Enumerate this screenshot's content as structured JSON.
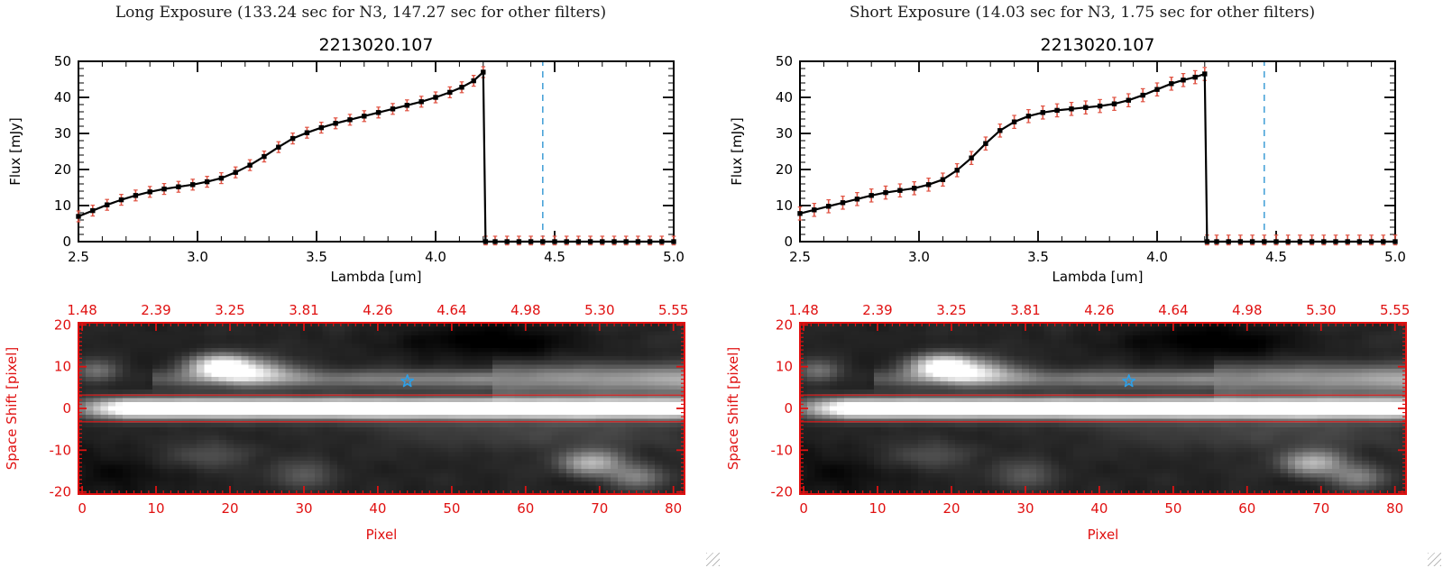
{
  "panels": [
    {
      "exposure_title": "Long Exposure (133.24 sec for N3, 147.27 sec for other filters)"
    },
    {
      "exposure_title": "Short Exposure (14.03 sec for N3, 1.75 sec for other filters)"
    }
  ],
  "chart_data": [
    {
      "type": "line",
      "panel": "long-exposure",
      "title": "2213020.107",
      "xlabel": "Lambda [um]",
      "ylabel": "Flux [mJy]",
      "xlim": [
        2.5,
        5.0
      ],
      "ylim": [
        0,
        50
      ],
      "x_minor": 0.1,
      "y_minor": 2,
      "xtick_values": [
        2.5,
        3.0,
        3.5,
        4.0,
        4.5,
        5.0
      ],
      "xtick_labels": [
        "2.5",
        "3.0",
        "3.5",
        "4.0",
        "4.5",
        "5.0"
      ],
      "ytick_values": [
        0,
        10,
        20,
        30,
        40,
        50
      ],
      "ytick_labels": [
        "0",
        "10",
        "20",
        "30",
        "40",
        "50"
      ],
      "marker": "filled-square",
      "line_color": "#000000",
      "error_color": "#e05545",
      "yerr": 1.5,
      "dashed_line_x": 4.45,
      "dashed_line_color": "#4aa3d8",
      "x": [
        2.5,
        2.56,
        2.62,
        2.68,
        2.74,
        2.8,
        2.86,
        2.92,
        2.98,
        3.04,
        3.1,
        3.16,
        3.22,
        3.28,
        3.34,
        3.4,
        3.46,
        3.52,
        3.58,
        3.64,
        3.7,
        3.76,
        3.82,
        3.88,
        3.94,
        4.0,
        4.06,
        4.11,
        4.16,
        4.2,
        4.21,
        4.25,
        4.3,
        4.35,
        4.4,
        4.45,
        4.5,
        4.55,
        4.6,
        4.65,
        4.7,
        4.75,
        4.8,
        4.85,
        4.9,
        4.95,
        5.0
      ],
      "y": [
        7.0,
        8.6,
        10.2,
        11.6,
        12.8,
        13.8,
        14.6,
        15.2,
        15.8,
        16.6,
        17.6,
        19.2,
        21.2,
        23.6,
        26.2,
        28.6,
        30.2,
        31.6,
        32.8,
        33.8,
        34.8,
        35.8,
        36.8,
        37.8,
        38.8,
        40.0,
        41.4,
        42.8,
        44.6,
        47.0,
        0,
        0,
        0,
        0,
        0,
        0,
        0,
        0,
        0,
        0,
        0,
        0,
        0,
        0,
        0,
        0,
        0
      ]
    },
    {
      "type": "heatmap",
      "panel": "long-exposure",
      "xlabel": "Pixel",
      "ylabel": "Space Shift [pixel]",
      "xlim": [
        0,
        81
      ],
      "ylim": [
        -20,
        20
      ],
      "xtick_values": [
        0,
        10,
        20,
        30,
        40,
        50,
        60,
        70,
        80
      ],
      "xtick_labels": [
        "0",
        "10",
        "20",
        "30",
        "40",
        "50",
        "60",
        "70",
        "80"
      ],
      "ytick_values": [
        20,
        10,
        0,
        -10,
        -20
      ],
      "ytick_labels": [
        "20",
        "10",
        "0",
        "-10",
        "-20"
      ],
      "top_axis_labels": [
        "1.48",
        "2.39",
        "3.25",
        "3.81",
        "4.26",
        "4.64",
        "4.98",
        "5.30",
        "5.55"
      ],
      "axis_color": "#e01111",
      "extraction_lines_y": [
        3.2,
        -3.2
      ],
      "star_marker": {
        "x": 44,
        "y": 6.5,
        "color": "#2e9fe6"
      },
      "image_features": {
        "noise": {
          "seed": 7,
          "base": 12,
          "range": 46,
          "smooth_passes": 2
        },
        "band": {
          "amp": 290,
          "sigma": 1.7,
          "left_fade_end": 9
        },
        "streak": {
          "y": 7,
          "x_start": 10,
          "amp_start": 55,
          "amp_slope": 1.1,
          "sigma": 1.5,
          "sigma_wide": 2.4,
          "widen_after_x": 55
        },
        "blobs": [
          [
            19,
            10,
            3.2,
            2.0,
            235
          ],
          [
            24,
            8.5,
            4,
            2,
            110
          ],
          [
            2,
            9,
            2,
            1.8,
            85
          ],
          [
            69,
            -13,
            3,
            2.2,
            150
          ],
          [
            75,
            -16.5,
            2.5,
            2,
            95
          ],
          [
            30,
            -16,
            3,
            2.5,
            55
          ],
          [
            17,
            -11,
            4,
            2.5,
            45
          ],
          [
            62,
            -6,
            16,
            2.8,
            34
          ],
          [
            55,
            16,
            9,
            3,
            -38
          ],
          [
            4,
            -16,
            5,
            4,
            -25
          ]
        ]
      }
    },
    {
      "type": "line",
      "panel": "short-exposure",
      "title": "2213020.107",
      "xlabel": "Lambda [um]",
      "ylabel": "Flux [mJy]",
      "xlim": [
        2.5,
        5.0
      ],
      "ylim": [
        0,
        50
      ],
      "x_minor": 0.1,
      "y_minor": 2,
      "xtick_values": [
        2.5,
        3.0,
        3.5,
        4.0,
        4.5,
        5.0
      ],
      "xtick_labels": [
        "2.5",
        "3.0",
        "3.5",
        "4.0",
        "4.5",
        "5.0"
      ],
      "ytick_values": [
        0,
        10,
        20,
        30,
        40,
        50
      ],
      "ytick_labels": [
        "0",
        "10",
        "20",
        "30",
        "40",
        "50"
      ],
      "marker": "filled-square",
      "line_color": "#000000",
      "error_color": "#e05545",
      "yerr": 1.8,
      "dashed_line_x": 4.45,
      "dashed_line_color": "#4aa3d8",
      "x": [
        2.5,
        2.56,
        2.62,
        2.68,
        2.74,
        2.8,
        2.86,
        2.92,
        2.98,
        3.04,
        3.1,
        3.16,
        3.22,
        3.28,
        3.34,
        3.4,
        3.46,
        3.52,
        3.58,
        3.64,
        3.7,
        3.76,
        3.82,
        3.88,
        3.94,
        4.0,
        4.06,
        4.11,
        4.16,
        4.2,
        4.21,
        4.25,
        4.3,
        4.35,
        4.4,
        4.45,
        4.5,
        4.55,
        4.6,
        4.65,
        4.7,
        4.75,
        4.8,
        4.85,
        4.9,
        4.95,
        5.0
      ],
      "y": [
        7.8,
        8.8,
        9.8,
        10.8,
        11.8,
        12.8,
        13.6,
        14.2,
        14.8,
        15.8,
        17.2,
        19.8,
        23.2,
        27.2,
        30.8,
        33.2,
        34.8,
        35.8,
        36.4,
        36.8,
        37.2,
        37.6,
        38.2,
        39.2,
        40.6,
        42.2,
        43.8,
        44.8,
        45.6,
        46.5,
        0,
        0,
        0,
        0,
        0,
        0,
        0,
        0,
        0,
        0,
        0,
        0,
        0,
        0,
        0,
        0,
        0
      ]
    },
    {
      "type": "heatmap",
      "panel": "short-exposure",
      "xlabel": "Pixel",
      "ylabel": "Space Shift [pixel]",
      "xlim": [
        0,
        81
      ],
      "ylim": [
        -20,
        20
      ],
      "xtick_values": [
        0,
        10,
        20,
        30,
        40,
        50,
        60,
        70,
        80
      ],
      "xtick_labels": [
        "0",
        "10",
        "20",
        "30",
        "40",
        "50",
        "60",
        "70",
        "80"
      ],
      "ytick_values": [
        20,
        10,
        0,
        -10,
        -20
      ],
      "ytick_labels": [
        "20",
        "10",
        "0",
        "-10",
        "-20"
      ],
      "top_axis_labels": [
        "1.48",
        "2.39",
        "3.25",
        "3.81",
        "4.26",
        "4.64",
        "4.98",
        "5.30",
        "5.55"
      ],
      "axis_color": "#e01111",
      "extraction_lines_y": [
        3.2,
        -3.2
      ],
      "star_marker": {
        "x": 44,
        "y": 6.5,
        "color": "#2e9fe6"
      },
      "image_features": {
        "noise": {
          "seed": 7,
          "base": 12,
          "range": 46,
          "smooth_passes": 2
        },
        "band": {
          "amp": 290,
          "sigma": 1.7,
          "left_fade_end": 9
        },
        "streak": {
          "y": 7,
          "x_start": 10,
          "amp_start": 55,
          "amp_slope": 1.1,
          "sigma": 1.5,
          "sigma_wide": 2.4,
          "widen_after_x": 55
        },
        "blobs": [
          [
            19,
            10,
            3.2,
            2.0,
            235
          ],
          [
            24,
            8.5,
            4,
            2,
            110
          ],
          [
            2,
            9,
            2,
            1.8,
            85
          ],
          [
            69,
            -13,
            3,
            2.2,
            150
          ],
          [
            75,
            -16.5,
            2.5,
            2,
            95
          ],
          [
            30,
            -16,
            3,
            2.5,
            55
          ],
          [
            17,
            -11,
            4,
            2.5,
            45
          ],
          [
            62,
            -6,
            16,
            2.8,
            34
          ],
          [
            55,
            16,
            9,
            3,
            -38
          ],
          [
            4,
            -16,
            5,
            4,
            -25
          ]
        ]
      }
    }
  ]
}
